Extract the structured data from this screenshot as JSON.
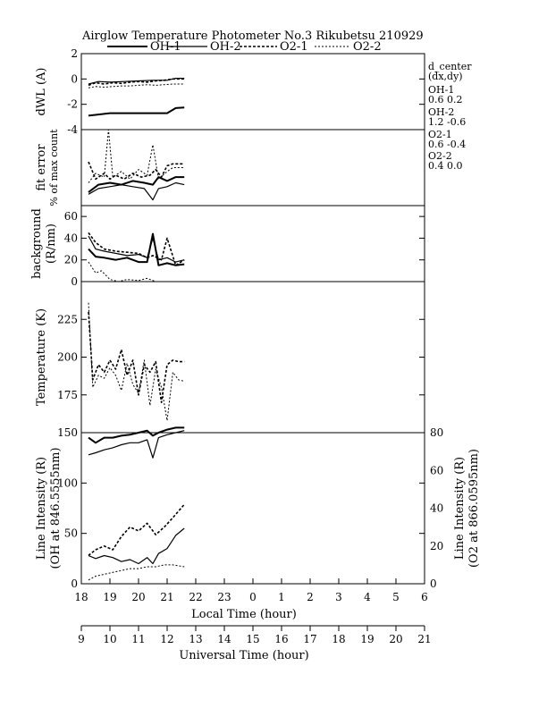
{
  "title": "Airglow Temperature Photometer No.3  Rikubetsu    210929",
  "legend": [
    {
      "name": "OH-1",
      "style": "solid-thick"
    },
    {
      "name": "OH-2",
      "style": "solid-thin"
    },
    {
      "name": "O2-1",
      "style": "dashed-thick"
    },
    {
      "name": "O2-2",
      "style": "dashed-thin"
    }
  ],
  "side_notes": {
    "d_center": "d_center",
    "dxdy": "(dx,dy)",
    "entries": [
      {
        "name": "OH-1",
        "dx": "0.6",
        "dy": "0.2"
      },
      {
        "name": "OH-2",
        "dx": "1.2",
        "dy": "-0.6"
      },
      {
        "name": "O2-1",
        "dx": "0.6",
        "dy": "-0.4"
      },
      {
        "name": "O2-2",
        "dx": "0.4",
        "dy": "0.0"
      }
    ]
  },
  "x_axes": {
    "local": {
      "label": "Local Time (hour)",
      "ticks": [
        "18",
        "19",
        "20",
        "21",
        "22",
        "23",
        "0",
        "1",
        "2",
        "3",
        "4",
        "5",
        "6"
      ],
      "range": [
        18,
        30
      ]
    },
    "universal": {
      "label": "Universal Time (hour)",
      "ticks": [
        "9",
        "10",
        "11",
        "12",
        "13",
        "14",
        "15",
        "16",
        "17",
        "18",
        "19",
        "20",
        "21"
      ],
      "range": [
        9,
        21
      ]
    }
  },
  "panels": [
    {
      "id": "dwl",
      "ylabel": "dWL (A)",
      "ylim": [
        -4,
        2
      ],
      "ticks": [
        "-4",
        "-2",
        "0",
        "2"
      ]
    },
    {
      "id": "fiterr",
      "ylabel_lines": [
        "fit error",
        "% of max count"
      ],
      "ylim": [
        0,
        2
      ],
      "ticks": []
    },
    {
      "id": "bg",
      "ylabel_lines": [
        "background",
        "(R/nm)"
      ],
      "ylim": [
        0,
        70
      ],
      "ticks": [
        "0",
        "20",
        "40",
        "60"
      ]
    },
    {
      "id": "temp",
      "ylabel": "Temperature (K)",
      "ylim": [
        150,
        250
      ],
      "ticks": [
        "175",
        "200",
        "225"
      ]
    },
    {
      "id": "int",
      "ylabel_lines": [
        "Line Intensity (R)",
        "(OH at 846.5555nm)"
      ],
      "ylim": [
        0,
        150
      ],
      "ticks": [
        "0",
        "50",
        "100",
        "150"
      ],
      "right_ylabel_lines": [
        "Line Intensity (R)",
        "(O2 at 866.0595nm)"
      ],
      "right_ylim": [
        0,
        80
      ],
      "right_ticks": [
        "0",
        "20",
        "40",
        "60",
        "80"
      ]
    }
  ],
  "chart_data": {
    "type": "line",
    "x_unit": "local time (hour)",
    "dwl": [
      {
        "name": "OH-1",
        "x": [
          18.25,
          19.0,
          20.0,
          21.0,
          21.3,
          21.6
        ],
        "y": [
          -2.9,
          -2.7,
          -2.7,
          -2.7,
          -2.3,
          -2.25
        ]
      },
      {
        "name": "OH-2",
        "x": [
          18.25,
          18.6,
          19.0,
          19.5,
          20.0,
          20.5,
          21.0,
          21.3,
          21.6
        ],
        "y": [
          -0.4,
          -0.2,
          -0.25,
          -0.2,
          -0.15,
          -0.1,
          -0.1,
          0.05,
          0.05
        ]
      },
      {
        "name": "O2-1",
        "x": [
          18.25,
          18.5,
          18.8,
          19.1,
          19.4,
          19.7,
          20.0,
          20.3,
          20.6,
          20.9,
          21.2,
          21.6
        ],
        "y": [
          -0.5,
          -0.3,
          -0.4,
          -0.3,
          -0.35,
          -0.25,
          -0.2,
          -0.25,
          -0.15,
          -0.1,
          0.0,
          0.0
        ]
      },
      {
        "name": "O2-2",
        "x": [
          18.25,
          18.5,
          18.8,
          19.1,
          19.4,
          19.7,
          20.0,
          20.3,
          20.6,
          20.9,
          21.2,
          21.6
        ],
        "y": [
          -0.7,
          -0.6,
          -0.65,
          -0.6,
          -0.55,
          -0.55,
          -0.5,
          -0.45,
          -0.5,
          -0.45,
          -0.4,
          -0.4
        ]
      }
    ],
    "fit_error": [
      {
        "name": "OH-1",
        "x": [
          18.25,
          18.6,
          19.0,
          19.4,
          19.8,
          20.2,
          20.5,
          20.7,
          21.0,
          21.3,
          21.6
        ],
        "y": [
          0.35,
          0.55,
          0.6,
          0.55,
          0.65,
          0.6,
          0.55,
          0.75,
          0.65,
          0.75,
          0.75
        ]
      },
      {
        "name": "OH-2",
        "x": [
          18.25,
          18.6,
          19.0,
          19.4,
          19.8,
          20.2,
          20.5,
          20.7,
          21.0,
          21.3,
          21.6
        ],
        "y": [
          0.3,
          0.45,
          0.5,
          0.55,
          0.5,
          0.45,
          0.15,
          0.45,
          0.5,
          0.6,
          0.55
        ]
      },
      {
        "name": "O2-1",
        "x": [
          18.25,
          18.5,
          18.8,
          19.0,
          19.2,
          19.5,
          19.8,
          20.1,
          20.4,
          20.6,
          20.8,
          21.0,
          21.2,
          21.6
        ],
        "y": [
          1.15,
          0.7,
          0.85,
          0.7,
          0.8,
          0.7,
          0.85,
          0.75,
          0.8,
          0.95,
          0.75,
          1.05,
          1.1,
          1.1
        ]
      },
      {
        "name": "O2-2",
        "x": [
          18.25,
          18.5,
          18.8,
          18.95,
          19.1,
          19.4,
          19.7,
          20.0,
          20.3,
          20.5,
          20.7,
          21.0,
          21.2,
          21.6
        ],
        "y": [
          0.6,
          0.85,
          0.75,
          2.0,
          0.75,
          0.9,
          0.7,
          0.95,
          0.8,
          1.6,
          0.7,
          0.9,
          1.0,
          1.0
        ]
      }
    ],
    "background": [
      {
        "name": "OH-1",
        "x": [
          18.25,
          18.5,
          18.8,
          19.2,
          19.6,
          20.0,
          20.3,
          20.5,
          20.7,
          21.0,
          21.3,
          21.6
        ],
        "y": [
          30,
          23,
          22,
          20,
          22,
          18,
          18,
          44,
          15,
          17,
          15,
          16
        ]
      },
      {
        "name": "OH-2",
        "x": [
          18.25,
          18.5,
          18.8,
          19.2,
          19.6,
          20.0,
          20.3,
          20.5,
          20.7,
          21.0,
          21.3,
          21.6
        ],
        "y": [
          42,
          30,
          28,
          26,
          24,
          25,
          22,
          40,
          20,
          22,
          18,
          20
        ]
      },
      {
        "name": "O2-1",
        "x": [
          18.25,
          18.5,
          18.8,
          19.2,
          19.6,
          20.0,
          20.3,
          20.5,
          20.8,
          21.0,
          21.3,
          21.6
        ],
        "y": [
          45,
          36,
          30,
          28,
          27,
          26,
          22,
          24,
          20,
          40,
          15,
          20
        ]
      },
      {
        "name": "O2-2",
        "x": [
          18.25,
          18.5,
          18.7,
          19.0,
          19.3,
          19.6,
          20.0,
          20.3,
          20.6
        ],
        "y": [
          18,
          8,
          10,
          2,
          0,
          2,
          1,
          3,
          0
        ]
      }
    ],
    "temperature": [
      {
        "name": "O2-1",
        "x": [
          18.25,
          18.4,
          18.6,
          18.8,
          19.0,
          19.2,
          19.4,
          19.6,
          19.8,
          20.0,
          20.2,
          20.4,
          20.6,
          20.8,
          21.0,
          21.2,
          21.4,
          21.6
        ],
        "y": [
          230,
          185,
          195,
          190,
          198,
          192,
          205,
          188,
          198,
          175,
          195,
          190,
          197,
          170,
          195,
          198,
          197,
          197
        ]
      },
      {
        "name": "O2-2",
        "x": [
          18.25,
          18.4,
          18.6,
          18.8,
          19.0,
          19.2,
          19.4,
          19.6,
          19.8,
          20.0,
          20.2,
          20.4,
          20.6,
          20.8,
          21.0,
          21.2,
          21.4,
          21.6
        ],
        "y": [
          236,
          180,
          188,
          186,
          193,
          188,
          178,
          196,
          182,
          176,
          198,
          168,
          192,
          180,
          158,
          190,
          185,
          184
        ]
      }
    ],
    "intensity_oh": [
      {
        "name": "OH-1",
        "x": [
          18.25,
          18.5,
          18.8,
          19.1,
          19.4,
          19.7,
          20.0,
          20.3,
          20.5,
          20.7,
          21.0,
          21.3,
          21.6
        ],
        "y": [
          145,
          140,
          145,
          145,
          147,
          148,
          150,
          152,
          147,
          150,
          153,
          155,
          155
        ]
      },
      {
        "name": "OH-2",
        "x": [
          18.25,
          18.5,
          18.8,
          19.1,
          19.4,
          19.7,
          20.0,
          20.3,
          20.5,
          20.7,
          21.0,
          21.3,
          21.6
        ],
        "y": [
          28,
          25,
          28,
          26,
          22,
          24,
          20,
          26,
          20,
          30,
          35,
          48,
          55
        ]
      }
    ],
    "intensity_oh_upper": [
      {
        "name": "OH-2",
        "x": [
          18.25,
          18.5,
          18.8,
          19.1,
          19.4,
          19.7,
          20.0,
          20.3,
          20.5,
          20.7,
          21.0,
          21.3,
          21.6
        ],
        "y": [
          128,
          130,
          133,
          135,
          138,
          140,
          140,
          143,
          125,
          145,
          148,
          150,
          152
        ]
      }
    ],
    "intensity_o2": [
      {
        "name": "O2-1",
        "x": [
          18.25,
          18.5,
          18.8,
          19.1,
          19.4,
          19.7,
          20.0,
          20.3,
          20.6,
          20.9,
          21.2,
          21.6
        ],
        "y": [
          15,
          18,
          20,
          18,
          25,
          30,
          28,
          32,
          26,
          30,
          35,
          42
        ]
      },
      {
        "name": "O2-2",
        "x": [
          18.25,
          18.5,
          18.8,
          19.1,
          19.4,
          19.7,
          20.0,
          20.3,
          20.6,
          20.9,
          21.2,
          21.6
        ],
        "y": [
          2,
          4,
          5,
          6,
          7,
          8,
          8,
          9,
          9,
          10,
          10,
          9
        ]
      }
    ]
  }
}
